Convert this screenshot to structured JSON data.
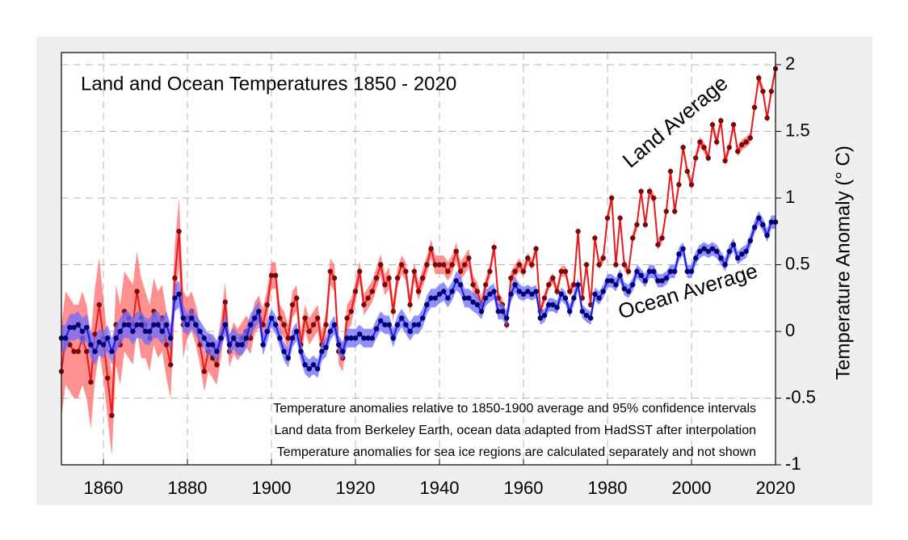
{
  "chart_data": {
    "type": "line",
    "title": "Land and Ocean Temperatures 1850 - 2020",
    "y_label": "Temperature Anomaly (° C)",
    "notes": [
      "Temperature anomalies relative to 1850-1900 average and 95% confidence intervals",
      "Land data from Berkeley Earth, ocean data adapted from HadSST after interpolation",
      "Temperature anomalies for sea ice regions are calculated separately and not shown"
    ],
    "xlim": [
      1850,
      2020
    ],
    "xticks": [
      1860,
      1880,
      1900,
      1920,
      1940,
      1960,
      1980,
      2000,
      2020
    ],
    "ylim": [
      -1,
      2
    ],
    "yticks": [
      -1,
      -0.5,
      0,
      0.5,
      1,
      1.5,
      2
    ],
    "grid": true,
    "x": [
      1850,
      1851,
      1852,
      1853,
      1854,
      1855,
      1856,
      1857,
      1858,
      1859,
      1860,
      1861,
      1862,
      1863,
      1864,
      1865,
      1866,
      1867,
      1868,
      1869,
      1870,
      1871,
      1872,
      1873,
      1874,
      1875,
      1876,
      1877,
      1878,
      1879,
      1880,
      1881,
      1882,
      1883,
      1884,
      1885,
      1886,
      1887,
      1888,
      1889,
      1890,
      1891,
      1892,
      1893,
      1894,
      1895,
      1896,
      1897,
      1898,
      1899,
      1900,
      1901,
      1902,
      1903,
      1904,
      1905,
      1906,
      1907,
      1908,
      1909,
      1910,
      1911,
      1912,
      1913,
      1914,
      1915,
      1916,
      1917,
      1918,
      1919,
      1920,
      1921,
      1922,
      1923,
      1924,
      1925,
      1926,
      1927,
      1928,
      1929,
      1930,
      1931,
      1932,
      1933,
      1934,
      1935,
      1936,
      1937,
      1938,
      1939,
      1940,
      1941,
      1942,
      1943,
      1944,
      1945,
      1946,
      1947,
      1948,
      1949,
      1950,
      1951,
      1952,
      1953,
      1954,
      1955,
      1956,
      1957,
      1958,
      1959,
      1960,
      1961,
      1962,
      1963,
      1964,
      1965,
      1966,
      1967,
      1968,
      1969,
      1970,
      1971,
      1972,
      1973,
      1974,
      1975,
      1976,
      1977,
      1978,
      1979,
      1980,
      1981,
      1982,
      1983,
      1984,
      1985,
      1986,
      1987,
      1988,
      1989,
      1990,
      1991,
      1992,
      1993,
      1994,
      1995,
      1996,
      1997,
      1998,
      1999,
      2000,
      2001,
      2002,
      2003,
      2004,
      2005,
      2006,
      2007,
      2008,
      2009,
      2010,
      2011,
      2012,
      2013,
      2014,
      2015,
      2016,
      2017,
      2018,
      2019,
      2020
    ],
    "series": [
      {
        "name": "Land Average",
        "color": "#e8191a",
        "marker_color": "#7a0a0a",
        "band_color": "#ff6b6b",
        "values": [
          -0.3,
          -0.05,
          -0.1,
          -0.15,
          -0.15,
          -0.05,
          -0.15,
          -0.38,
          -0.02,
          0.2,
          -0.05,
          -0.35,
          -0.63,
          0.05,
          -0.1,
          0.15,
          0.1,
          0.05,
          0.3,
          0.1,
          0.05,
          -0.05,
          0.15,
          0.05,
          0.1,
          -0.1,
          -0.25,
          0.4,
          0.75,
          0.05,
          0.1,
          0.15,
          0.05,
          -0.1,
          -0.3,
          -0.15,
          -0.2,
          -0.25,
          -0.05,
          0.22,
          -0.15,
          -0.05,
          -0.1,
          -0.05,
          0.0,
          -0.05,
          0.1,
          0.15,
          0.05,
          0.2,
          0.42,
          0.42,
          0.1,
          0.05,
          -0.05,
          0.2,
          0.25,
          -0.1,
          0.1,
          0.0,
          0.05,
          0.1,
          -0.1,
          0.05,
          0.45,
          0.4,
          -0.15,
          -0.2,
          0.1,
          0.15,
          0.3,
          0.45,
          0.2,
          0.25,
          0.3,
          0.4,
          0.5,
          0.35,
          0.4,
          0.15,
          0.4,
          0.5,
          0.45,
          0.2,
          0.45,
          0.3,
          0.4,
          0.5,
          0.62,
          0.5,
          0.5,
          0.5,
          0.45,
          0.5,
          0.6,
          0.45,
          0.5,
          0.55,
          0.35,
          0.3,
          0.2,
          0.35,
          0.45,
          0.63,
          0.25,
          0.2,
          0.05,
          0.4,
          0.45,
          0.5,
          0.45,
          0.55,
          0.5,
          0.62,
          0.15,
          0.25,
          0.35,
          0.4,
          0.3,
          0.45,
          0.45,
          0.3,
          0.35,
          0.75,
          0.25,
          0.5,
          0.2,
          0.7,
          0.5,
          0.55,
          0.85,
          1.0,
          0.5,
          0.85,
          0.5,
          0.45,
          0.7,
          0.8,
          1.05,
          0.8,
          1.05,
          1.0,
          0.65,
          0.7,
          0.9,
          1.2,
          0.9,
          1.1,
          1.38,
          1.2,
          1.1,
          1.3,
          1.42,
          1.38,
          1.3,
          1.55,
          1.42,
          1.58,
          1.28,
          1.38,
          1.55,
          1.35,
          1.4,
          1.42,
          1.45,
          1.68,
          1.9,
          1.8,
          1.6,
          1.8,
          1.97
        ],
        "ci": [
          0.35,
          0.35,
          0.35,
          0.35,
          0.35,
          0.35,
          0.35,
          0.35,
          0.35,
          0.35,
          0.3,
          0.3,
          0.3,
          0.3,
          0.3,
          0.3,
          0.3,
          0.3,
          0.3,
          0.3,
          0.25,
          0.25,
          0.25,
          0.25,
          0.25,
          0.25,
          0.25,
          0.25,
          0.25,
          0.25,
          0.15,
          0.15,
          0.15,
          0.15,
          0.15,
          0.15,
          0.15,
          0.15,
          0.15,
          0.15,
          0.12,
          0.12,
          0.12,
          0.12,
          0.12,
          0.12,
          0.12,
          0.12,
          0.12,
          0.12,
          0.1,
          0.1,
          0.1,
          0.1,
          0.1,
          0.1,
          0.1,
          0.1,
          0.1,
          0.1,
          0.1,
          0.1,
          0.1,
          0.1,
          0.1,
          0.1,
          0.1,
          0.1,
          0.1,
          0.1,
          0.08,
          0.08,
          0.08,
          0.08,
          0.08,
          0.08,
          0.08,
          0.08,
          0.08,
          0.08,
          0.07,
          0.07,
          0.07,
          0.07,
          0.07,
          0.07,
          0.07,
          0.07,
          0.07,
          0.07,
          0.07,
          0.07,
          0.07,
          0.07,
          0.07,
          0.07,
          0.07,
          0.07,
          0.07,
          0.07,
          0.05,
          0.05,
          0.05,
          0.05,
          0.05,
          0.05,
          0.05,
          0.05,
          0.05,
          0.05,
          0.04,
          0.04,
          0.04,
          0.04,
          0.04,
          0.04,
          0.04,
          0.04,
          0.04,
          0.04,
          0.04,
          0.04,
          0.04,
          0.04,
          0.04,
          0.04,
          0.04,
          0.04,
          0.04,
          0.04,
          0.04,
          0.04,
          0.04,
          0.04,
          0.04,
          0.04,
          0.04,
          0.04,
          0.04,
          0.04,
          0.04,
          0.04,
          0.04,
          0.04,
          0.04,
          0.04,
          0.04,
          0.04,
          0.04,
          0.04,
          0.04,
          0.04,
          0.04,
          0.04,
          0.04,
          0.04,
          0.04,
          0.04,
          0.04,
          0.04,
          0.04,
          0.04,
          0.04,
          0.04,
          0.04,
          0.04,
          0.04,
          0.04,
          0.04,
          0.04,
          0.04
        ]
      },
      {
        "name": "Ocean Average",
        "color": "#1a1ae6",
        "marker_color": "#00006e",
        "band_color": "#6b6bff",
        "values": [
          -0.05,
          -0.05,
          0.03,
          0.03,
          0.05,
          0.0,
          0.03,
          -0.1,
          -0.15,
          -0.08,
          -0.1,
          -0.05,
          -0.15,
          -0.05,
          0.0,
          0.05,
          0.05,
          0.0,
          0.05,
          0.05,
          0.0,
          0.0,
          0.05,
          0.05,
          0.0,
          0.05,
          -0.05,
          0.25,
          0.28,
          0.1,
          0.05,
          0.1,
          0.05,
          0.0,
          -0.05,
          -0.1,
          -0.1,
          -0.15,
          -0.05,
          0.05,
          -0.1,
          -0.05,
          -0.1,
          -0.1,
          -0.05,
          0.05,
          0.1,
          0.15,
          -0.1,
          0.0,
          0.1,
          0.05,
          -0.05,
          -0.15,
          -0.2,
          -0.05,
          0.0,
          -0.15,
          -0.25,
          -0.28,
          -0.25,
          -0.28,
          -0.15,
          -0.12,
          0.0,
          0.05,
          -0.1,
          -0.15,
          -0.05,
          -0.05,
          -0.05,
          -0.02,
          -0.05,
          -0.05,
          -0.05,
          0.02,
          0.08,
          0.05,
          0.05,
          -0.05,
          0.05,
          0.1,
          0.05,
          0.0,
          0.05,
          0.05,
          0.1,
          0.2,
          0.25,
          0.25,
          0.28,
          0.3,
          0.25,
          0.3,
          0.38,
          0.35,
          0.25,
          0.25,
          0.22,
          0.2,
          0.15,
          0.25,
          0.28,
          0.3,
          0.15,
          0.15,
          0.1,
          0.28,
          0.35,
          0.3,
          0.28,
          0.3,
          0.28,
          0.3,
          0.1,
          0.12,
          0.2,
          0.2,
          0.18,
          0.28,
          0.25,
          0.15,
          0.25,
          0.35,
          0.15,
          0.12,
          0.1,
          0.28,
          0.25,
          0.3,
          0.38,
          0.38,
          0.35,
          0.42,
          0.32,
          0.3,
          0.35,
          0.45,
          0.42,
          0.38,
          0.45,
          0.45,
          0.38,
          0.38,
          0.4,
          0.45,
          0.45,
          0.58,
          0.62,
          0.45,
          0.45,
          0.55,
          0.6,
          0.62,
          0.6,
          0.62,
          0.6,
          0.55,
          0.5,
          0.6,
          0.65,
          0.55,
          0.58,
          0.6,
          0.68,
          0.78,
          0.85,
          0.8,
          0.72,
          0.82,
          0.82
        ],
        "ci": [
          0.1,
          0.1,
          0.1,
          0.1,
          0.1,
          0.1,
          0.1,
          0.1,
          0.1,
          0.1,
          0.1,
          0.1,
          0.1,
          0.1,
          0.1,
          0.1,
          0.1,
          0.1,
          0.1,
          0.1,
          0.1,
          0.1,
          0.1,
          0.1,
          0.1,
          0.1,
          0.1,
          0.1,
          0.1,
          0.1,
          0.08,
          0.08,
          0.08,
          0.08,
          0.08,
          0.08,
          0.08,
          0.08,
          0.08,
          0.08,
          0.08,
          0.08,
          0.08,
          0.08,
          0.08,
          0.08,
          0.08,
          0.08,
          0.08,
          0.08,
          0.07,
          0.07,
          0.07,
          0.07,
          0.07,
          0.07,
          0.07,
          0.07,
          0.07,
          0.07,
          0.07,
          0.07,
          0.07,
          0.07,
          0.07,
          0.07,
          0.07,
          0.07,
          0.07,
          0.07,
          0.07,
          0.07,
          0.07,
          0.07,
          0.07,
          0.07,
          0.07,
          0.07,
          0.07,
          0.07,
          0.07,
          0.07,
          0.07,
          0.07,
          0.07,
          0.07,
          0.07,
          0.07,
          0.07,
          0.07,
          0.07,
          0.07,
          0.07,
          0.07,
          0.07,
          0.07,
          0.07,
          0.07,
          0.07,
          0.07,
          0.06,
          0.06,
          0.06,
          0.06,
          0.06,
          0.06,
          0.06,
          0.06,
          0.06,
          0.06,
          0.05,
          0.05,
          0.05,
          0.05,
          0.05,
          0.05,
          0.05,
          0.05,
          0.05,
          0.05,
          0.05,
          0.05,
          0.05,
          0.05,
          0.05,
          0.05,
          0.05,
          0.05,
          0.05,
          0.05,
          0.05,
          0.05,
          0.05,
          0.05,
          0.05,
          0.05,
          0.05,
          0.05,
          0.05,
          0.05,
          0.05,
          0.05,
          0.05,
          0.05,
          0.05,
          0.05,
          0.05,
          0.05,
          0.05,
          0.05,
          0.05,
          0.05,
          0.05,
          0.05,
          0.05,
          0.05,
          0.05,
          0.05,
          0.05,
          0.05,
          0.05,
          0.05,
          0.05,
          0.05,
          0.05,
          0.05,
          0.05,
          0.05,
          0.05,
          0.05,
          0.05
        ]
      }
    ]
  }
}
